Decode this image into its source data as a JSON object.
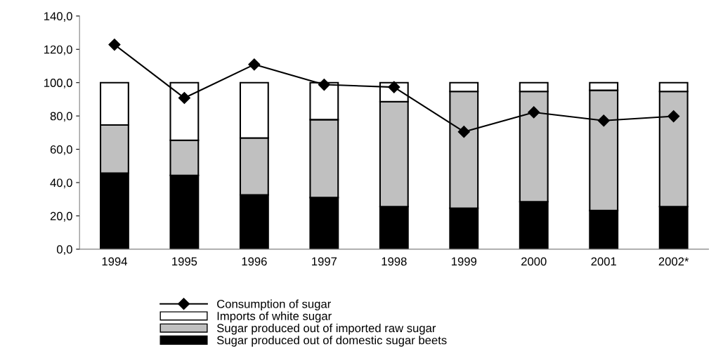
{
  "chart_data": {
    "type": "bar",
    "stacked": true,
    "categories": [
      "1994",
      "1995",
      "1996",
      "1997",
      "1998",
      "1999",
      "2000",
      "2001",
      "2002*"
    ],
    "series": [
      {
        "name": "Sugar produced out of domestic sugar beets",
        "color": "#000000",
        "values": [
          45.7,
          44.3,
          32.6,
          31.0,
          25.6,
          24.6,
          28.5,
          23.2,
          25.6
        ]
      },
      {
        "name": "Sugar produced out of imported raw sugar",
        "color": "#c0c0c0",
        "values": [
          28.9,
          21.1,
          34.2,
          46.8,
          63.0,
          70.1,
          66.2,
          72.2,
          69.1
        ]
      },
      {
        "name": "Imports of white sugar",
        "color": "#ffffff",
        "values": [
          25.4,
          34.6,
          33.2,
          22.2,
          11.4,
          5.3,
          5.3,
          4.6,
          5.3
        ]
      },
      {
        "name": "Consumption of sugar",
        "type": "line",
        "color": "#000000",
        "marker": "diamond",
        "values": [
          122.8,
          90.8,
          110.9,
          98.8,
          97.3,
          70.5,
          82.2,
          77.2,
          79.8
        ]
      }
    ],
    "ylim": [
      0,
      140
    ],
    "yticks": [
      {
        "value": 0,
        "label": "0,0"
      },
      {
        "value": 20,
        "label": "20,0"
      },
      {
        "value": 40,
        "label": "40,0"
      },
      {
        "value": 60,
        "label": "60,0"
      },
      {
        "value": 80,
        "label": "80,0"
      },
      {
        "value": 100,
        "label": "100,0"
      },
      {
        "value": 120,
        "label": "120,0"
      },
      {
        "value": 140,
        "label": "140,0"
      }
    ],
    "grid": false,
    "legend": "bottom"
  }
}
